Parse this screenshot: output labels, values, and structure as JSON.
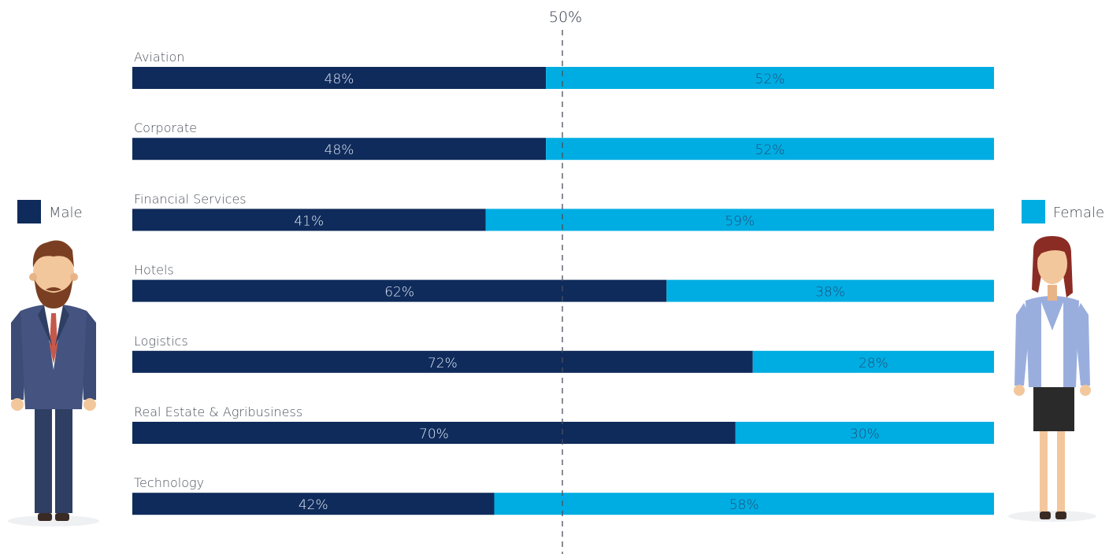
{
  "chart_data": {
    "type": "bar",
    "stacked": true,
    "orientation": "horizontal",
    "categories": [
      "Aviation",
      "Corporate",
      "Financial Services",
      "Hotels",
      "Logistics",
      "Real Estate & Agribusiness",
      "Technology"
    ],
    "series": [
      {
        "name": "Male",
        "values": [
          48,
          48,
          41,
          62,
          72,
          70,
          42
        ],
        "color": "#0f2b5b",
        "labels": [
          "48%",
          "48%",
          "41%",
          "62%",
          "72%",
          "70%",
          "42%"
        ]
      },
      {
        "name": "Female",
        "values": [
          52,
          52,
          59,
          38,
          28,
          30,
          58
        ],
        "color": "#00ade2",
        "labels": [
          "52%",
          "52%",
          "59%",
          "38%",
          "28%",
          "30%",
          "58%"
        ]
      }
    ],
    "reference_line": {
      "value": 50,
      "label": "50%"
    },
    "legend": {
      "male": "Male",
      "female": "Female",
      "placement": "sides"
    }
  },
  "colors": {
    "male": "#0f2b5b",
    "female": "#00ade2",
    "text": "#4a4f5a",
    "bar_label": "#dfe8f5"
  },
  "icons": {
    "left": "businessman-figure-icon",
    "right": "businesswoman-figure-icon"
  }
}
